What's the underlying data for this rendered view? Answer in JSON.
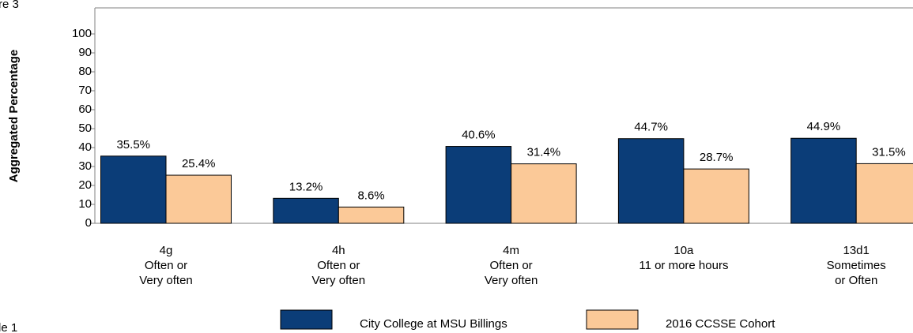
{
  "chart_data": {
    "type": "bar",
    "corner_texts": [
      "re 3",
      "le 1"
    ],
    "ylabel": "Aggregated Percentage",
    "categories": [
      [
        "4g",
        "Often or",
        "Very often"
      ],
      [
        "4h",
        "Often or",
        "Very often"
      ],
      [
        "4m",
        "Often or",
        "Very often"
      ],
      [
        "10a",
        "11 or more hours"
      ],
      [
        "13d1",
        "Sometimes",
        "or Often"
      ]
    ],
    "series": [
      {
        "name": "City College at MSU Billings",
        "color": "#0b3d78",
        "values": [
          35.5,
          13.2,
          40.6,
          44.7,
          44.9
        ],
        "value_labels": [
          "35.5%",
          "13.2%",
          "40.6%",
          "44.7%",
          "44.9%"
        ]
      },
      {
        "name": "2016 CCSSE Cohort",
        "color": "#fbc998",
        "values": [
          25.4,
          8.6,
          31.4,
          28.7,
          31.5
        ],
        "value_labels": [
          "25.4%",
          "8.6%",
          "31.4%",
          "28.7%",
          "31.5%"
        ]
      }
    ],
    "ylim": [
      0,
      113.75
    ],
    "yticks": [
      0,
      10,
      20,
      30,
      40,
      50,
      60,
      70,
      80,
      90,
      100
    ],
    "legend": "bottom"
  }
}
